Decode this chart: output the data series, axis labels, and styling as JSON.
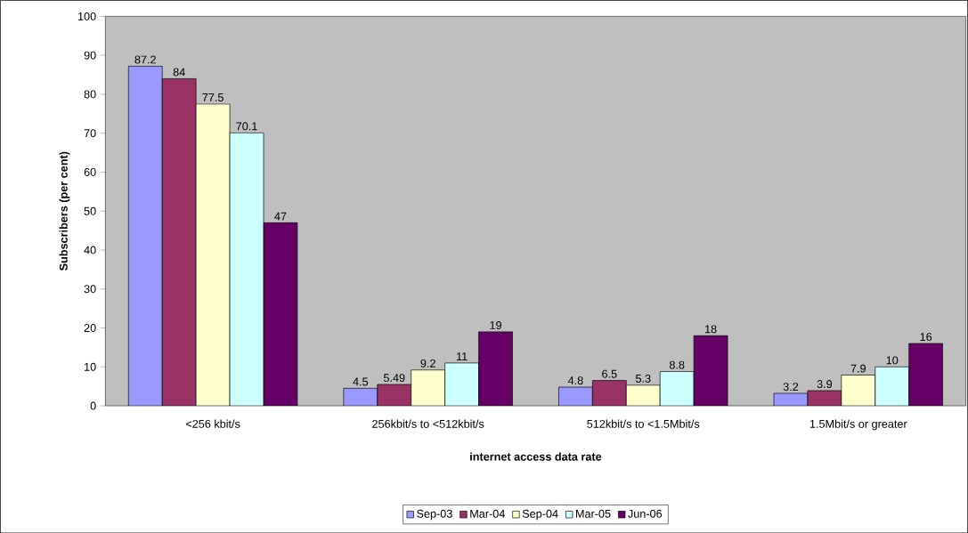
{
  "chart_data": {
    "type": "bar",
    "xlabel": "internet access data rate",
    "ylabel": "Subscribers (per cent)",
    "categories": [
      "<256 kbit/s",
      "256kbit/s to <512kbit/s",
      "512kbit/s to <1.5Mbit/s",
      "1.5Mbit/s or greater"
    ],
    "series": [
      {
        "name": "Sep-03",
        "color": "#9999ff",
        "values": [
          87.2,
          4.5,
          4.8,
          3.2
        ]
      },
      {
        "name": "Mar-04",
        "color": "#993366",
        "values": [
          84,
          5.49,
          6.5,
          3.9
        ]
      },
      {
        "name": "Sep-04",
        "color": "#ffffcc",
        "values": [
          77.5,
          9.2,
          5.3,
          7.9
        ]
      },
      {
        "name": "Mar-05",
        "color": "#ccffff",
        "values": [
          70.1,
          11,
          8.8,
          10
        ]
      },
      {
        "name": "Jun-06",
        "color": "#660066",
        "values": [
          47,
          19,
          18,
          16
        ]
      }
    ],
    "ylim": [
      0,
      100
    ],
    "yticks": [
      0,
      10,
      20,
      30,
      40,
      50,
      60,
      70,
      80,
      90,
      100
    ],
    "data_labels": true,
    "legend": "bottom",
    "grid": false
  }
}
